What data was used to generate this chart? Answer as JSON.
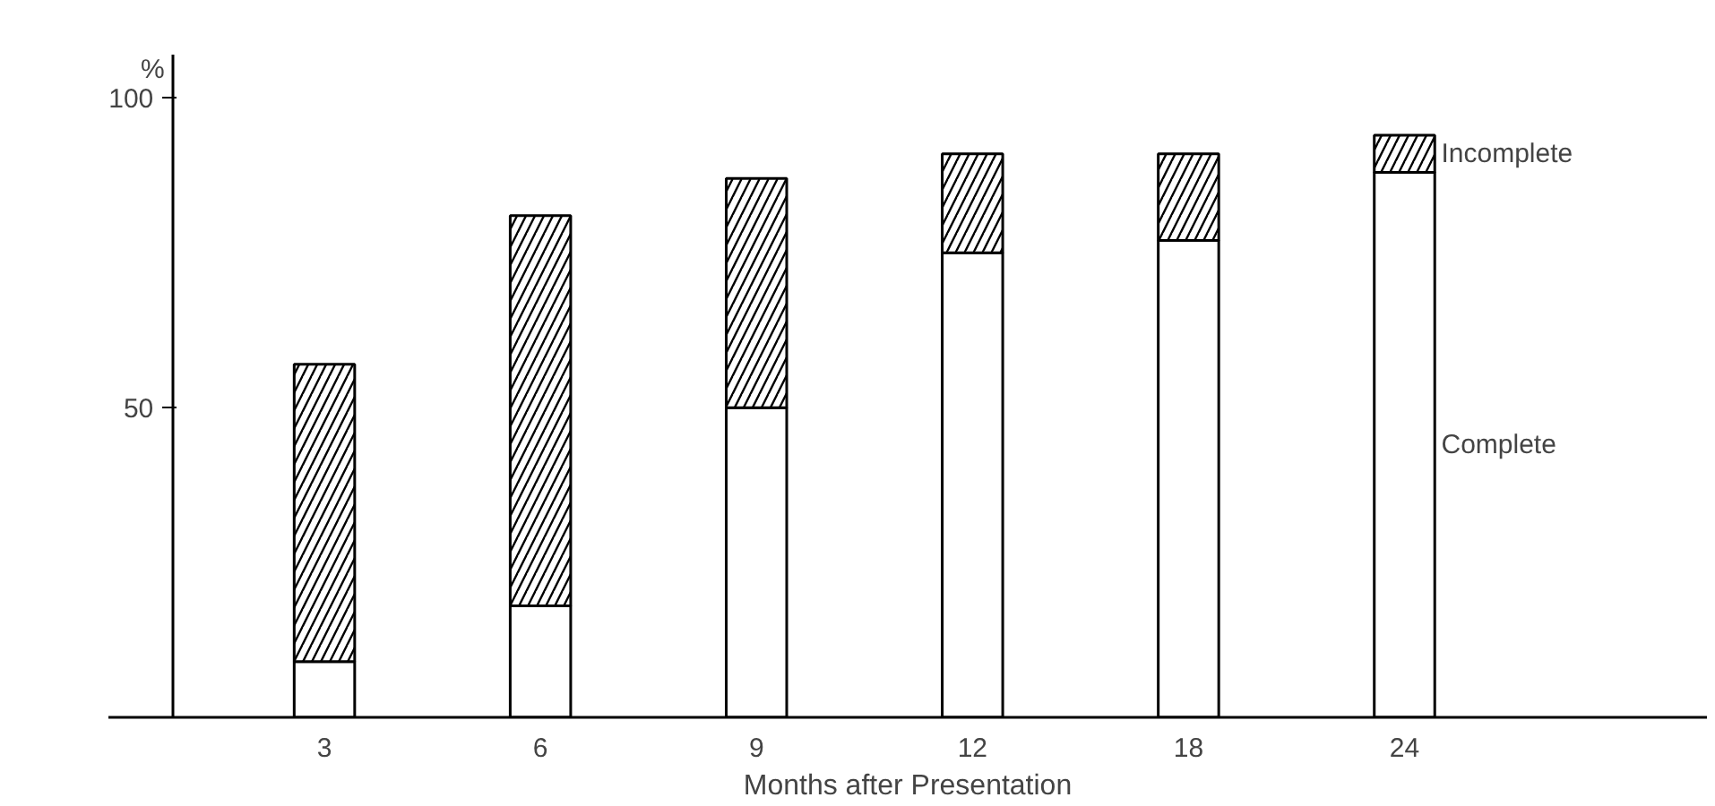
{
  "chart_data": {
    "type": "bar",
    "stacked": true,
    "ylabel": "%",
    "xlabel": "Months after Presentation",
    "categories": [
      "3",
      "6",
      "9",
      "12",
      "18",
      "24"
    ],
    "series": [
      {
        "name": "Complete",
        "color": "#ffffff",
        "values": [
          9,
          18,
          50,
          75,
          77,
          88
        ]
      },
      {
        "name": "Incomplete",
        "color": "#ffffff",
        "values": [
          48,
          63,
          37,
          16,
          14,
          6
        ]
      }
    ],
    "ylim": [
      0,
      107
    ],
    "yticks": [
      50,
      100
    ],
    "grid": false
  }
}
